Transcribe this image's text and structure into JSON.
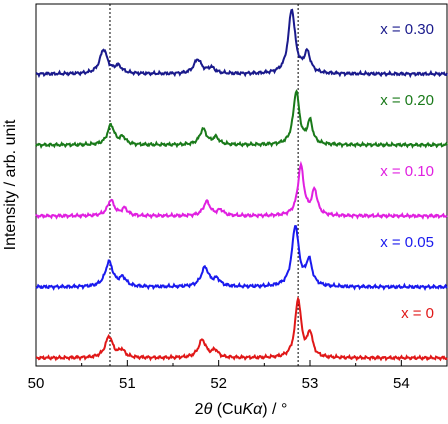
{
  "chart_data": {
    "type": "line",
    "title": "",
    "xlabel": {
      "prefix": "2",
      "theta": "θ",
      "mid": " (Cu",
      "k": "K",
      "alpha": "α",
      "suffix": ") / °"
    },
    "ylabel": "Intensity / arb. unit",
    "xlim": [
      50.0,
      54.5
    ],
    "x_ticks": [
      50,
      51,
      52,
      53,
      54
    ],
    "x_minor_step": 0.5,
    "y_ticks_shown": false,
    "grid": false,
    "reference_lines_x": [
      50.81,
      52.87
    ],
    "series": [
      {
        "name": "x = 0.30",
        "color": "#1a1a8c",
        "baseline": 4.0,
        "peaks": [
          [
            50.74,
            0.34,
            0.05
          ],
          [
            50.9,
            0.1,
            0.05
          ],
          [
            51.77,
            0.2,
            0.05
          ],
          [
            51.92,
            0.08,
            0.05
          ],
          [
            52.8,
            0.9,
            0.045
          ],
          [
            52.97,
            0.28,
            0.04
          ]
        ]
      },
      {
        "name": "x = 0.20",
        "color": "#1a7a1a",
        "baseline": 3.0,
        "peaks": [
          [
            50.82,
            0.28,
            0.045
          ],
          [
            50.95,
            0.1,
            0.04
          ],
          [
            51.83,
            0.22,
            0.045
          ],
          [
            51.97,
            0.1,
            0.04
          ],
          [
            52.85,
            0.75,
            0.04
          ],
          [
            53.0,
            0.32,
            0.035
          ]
        ]
      },
      {
        "name": "x = 0.10",
        "color": "#e020e0",
        "baseline": 2.0,
        "peaks": [
          [
            50.82,
            0.22,
            0.045
          ],
          [
            50.97,
            0.1,
            0.04
          ],
          [
            51.87,
            0.2,
            0.045
          ],
          [
            52.02,
            0.08,
            0.04
          ],
          [
            52.9,
            0.7,
            0.04
          ],
          [
            53.05,
            0.35,
            0.035
          ]
        ]
      },
      {
        "name": "x = 0.05",
        "color": "#1a1aee",
        "baseline": 1.0,
        "peaks": [
          [
            50.8,
            0.35,
            0.05
          ],
          [
            50.95,
            0.12,
            0.045
          ],
          [
            51.85,
            0.27,
            0.05
          ],
          [
            51.98,
            0.1,
            0.045
          ],
          [
            52.84,
            0.85,
            0.045
          ],
          [
            52.99,
            0.35,
            0.04
          ]
        ]
      },
      {
        "name": "x = 0",
        "color": "#e01818",
        "baseline": 0.0,
        "peaks": [
          [
            50.8,
            0.3,
            0.05
          ],
          [
            50.94,
            0.1,
            0.04
          ],
          [
            51.82,
            0.25,
            0.05
          ],
          [
            51.96,
            0.1,
            0.04
          ],
          [
            52.87,
            0.82,
            0.04
          ],
          [
            53.0,
            0.33,
            0.035
          ]
        ]
      }
    ]
  }
}
